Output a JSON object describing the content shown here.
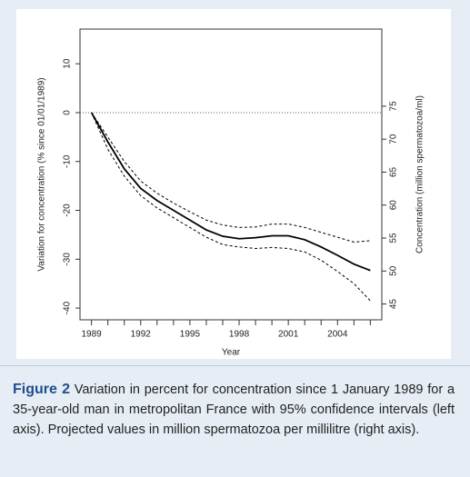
{
  "chart_data": {
    "type": "line",
    "title": null,
    "xlabel": "Year",
    "ylabel": "Variation for concentration (% since 01/01/1989)",
    "y2label": "Concentration (million spermatozoa/ml)",
    "x": [
      1989,
      1990,
      1991,
      1992,
      1993,
      1994,
      1995,
      1996,
      1997,
      1998,
      1999,
      2000,
      2001,
      2002,
      2003,
      2004,
      2005,
      2006
    ],
    "series": [
      {
        "name": "Variation",
        "color": "#000000",
        "style": "solid",
        "values": [
          0,
          -6,
          -11.5,
          -15.5,
          -18,
          -20,
          -22,
          -24,
          -25.3,
          -25.8,
          -25.6,
          -25.2,
          -25.2,
          -26,
          -27.5,
          -29.2,
          -31,
          -32.3
        ]
      },
      {
        "name": "Upper 95% CI",
        "color": "#000000",
        "style": "dashed",
        "values": [
          0,
          -5,
          -10,
          -14,
          -16.5,
          -18.5,
          -20.3,
          -22,
          -23,
          -23.5,
          -23.4,
          -22.8,
          -22.8,
          -23.5,
          -24.5,
          -25.5,
          -26.5,
          -26.2
        ]
      },
      {
        "name": "Lower 95% CI",
        "color": "#000000",
        "style": "dashed",
        "values": [
          0,
          -7.5,
          -13,
          -17,
          -19.5,
          -21.5,
          -23.5,
          -25.5,
          -27,
          -27.5,
          -27.8,
          -27.6,
          -27.8,
          -28.5,
          -30.2,
          -32.5,
          -35,
          -38.5
        ]
      }
    ],
    "xlim": [
      1988.3,
      2006.7
    ],
    "xticks": [
      1989,
      1992,
      1995,
      1998,
      2001,
      2004
    ],
    "xminorticks": [
      1990,
      1991,
      1993,
      1994,
      1996,
      1997,
      1999,
      2000,
      2002,
      2003,
      2005,
      2006
    ],
    "ylim": [
      -42.4,
      17.1
    ],
    "yticks": [
      -40,
      -30,
      -20,
      -10,
      0,
      10
    ],
    "y2lim": [
      42.6,
      86.7
    ],
    "y2ticks": [
      45,
      50,
      55,
      60,
      65,
      70,
      75
    ],
    "hline": 0
  },
  "caption": {
    "label": "Figure 2",
    "text": "Variation in percent for concentration since 1 January 1989 for a 35-year-old man in metropolitan France with 95% confidence intervals (left axis). Projected values in million spermatozoa per millilitre (right axis)."
  }
}
